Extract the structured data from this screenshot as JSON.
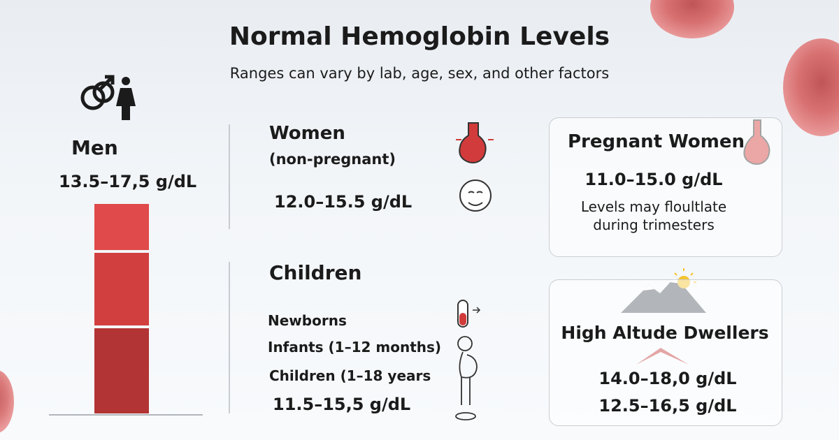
{
  "header": {
    "title": "Normal Hemoglobin Levels",
    "subtitle": "Ranges can vary by lab, age, sex, and other factors"
  },
  "men": {
    "label": "Men",
    "range": "13.5–17,5 g/dL"
  },
  "women": {
    "label": "Women",
    "note": "(non-pregnant)",
    "range": "12.0–15.5 g/dL"
  },
  "children": {
    "label": "Children",
    "groups": [
      "Newborns",
      "Infants (1–12 months)",
      "Children (1–18 years"
    ],
    "range": "11.5–15,5 g/dL"
  },
  "pregnant": {
    "label": "Pregnant Women",
    "range": "11.0–15.0 g/dL",
    "note_lines": [
      "Levels may floultlate",
      "during trimesters"
    ]
  },
  "altitude": {
    "label": "High Altude Dwellers",
    "ranges": [
      "14.0–18,0 g/dL",
      "12.5–16,5 g/dL"
    ]
  }
}
